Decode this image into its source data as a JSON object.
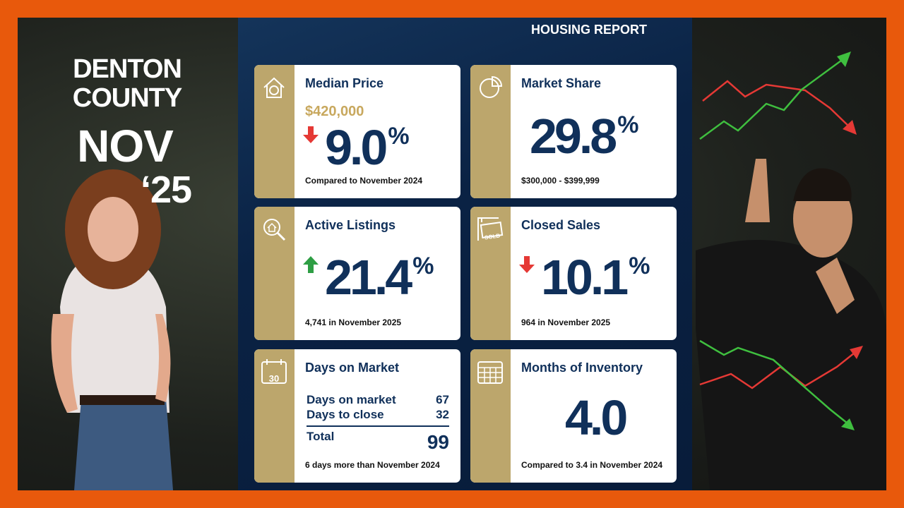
{
  "side": {
    "place_line1": "DENTON",
    "place_line2": "COUNTY",
    "month": "NOV",
    "year": "‘25"
  },
  "report": {
    "heading": "HOUSING REPORT",
    "cards": [
      {
        "title": "Median Price",
        "price": "$420,000",
        "trend": "down",
        "number": "9.0",
        "unit": "%",
        "note": "Compared to November 2024"
      },
      {
        "title": "Market Share",
        "number": "29.8",
        "unit": "%",
        "note": "$300,000 - $399,999"
      },
      {
        "title": "Active Listings",
        "trend": "up",
        "number": "21.4",
        "unit": "%",
        "note": "4,741 in November 2025"
      },
      {
        "title": "Closed Sales",
        "icon_text": "SOLD",
        "trend": "down",
        "number": "10.1",
        "unit": "%",
        "note": "964 in November 2025"
      },
      {
        "title": "Days on Market",
        "icon_text": "30",
        "rows": [
          [
            "Days on market",
            "67"
          ],
          [
            "Days to close",
            "32"
          ]
        ],
        "total": [
          "Total",
          "99"
        ],
        "note": "6 days more than November 2024"
      },
      {
        "title": "Months of Inventory",
        "number": "4.0",
        "note": "Compared to 3.4 in November 2024"
      }
    ]
  }
}
